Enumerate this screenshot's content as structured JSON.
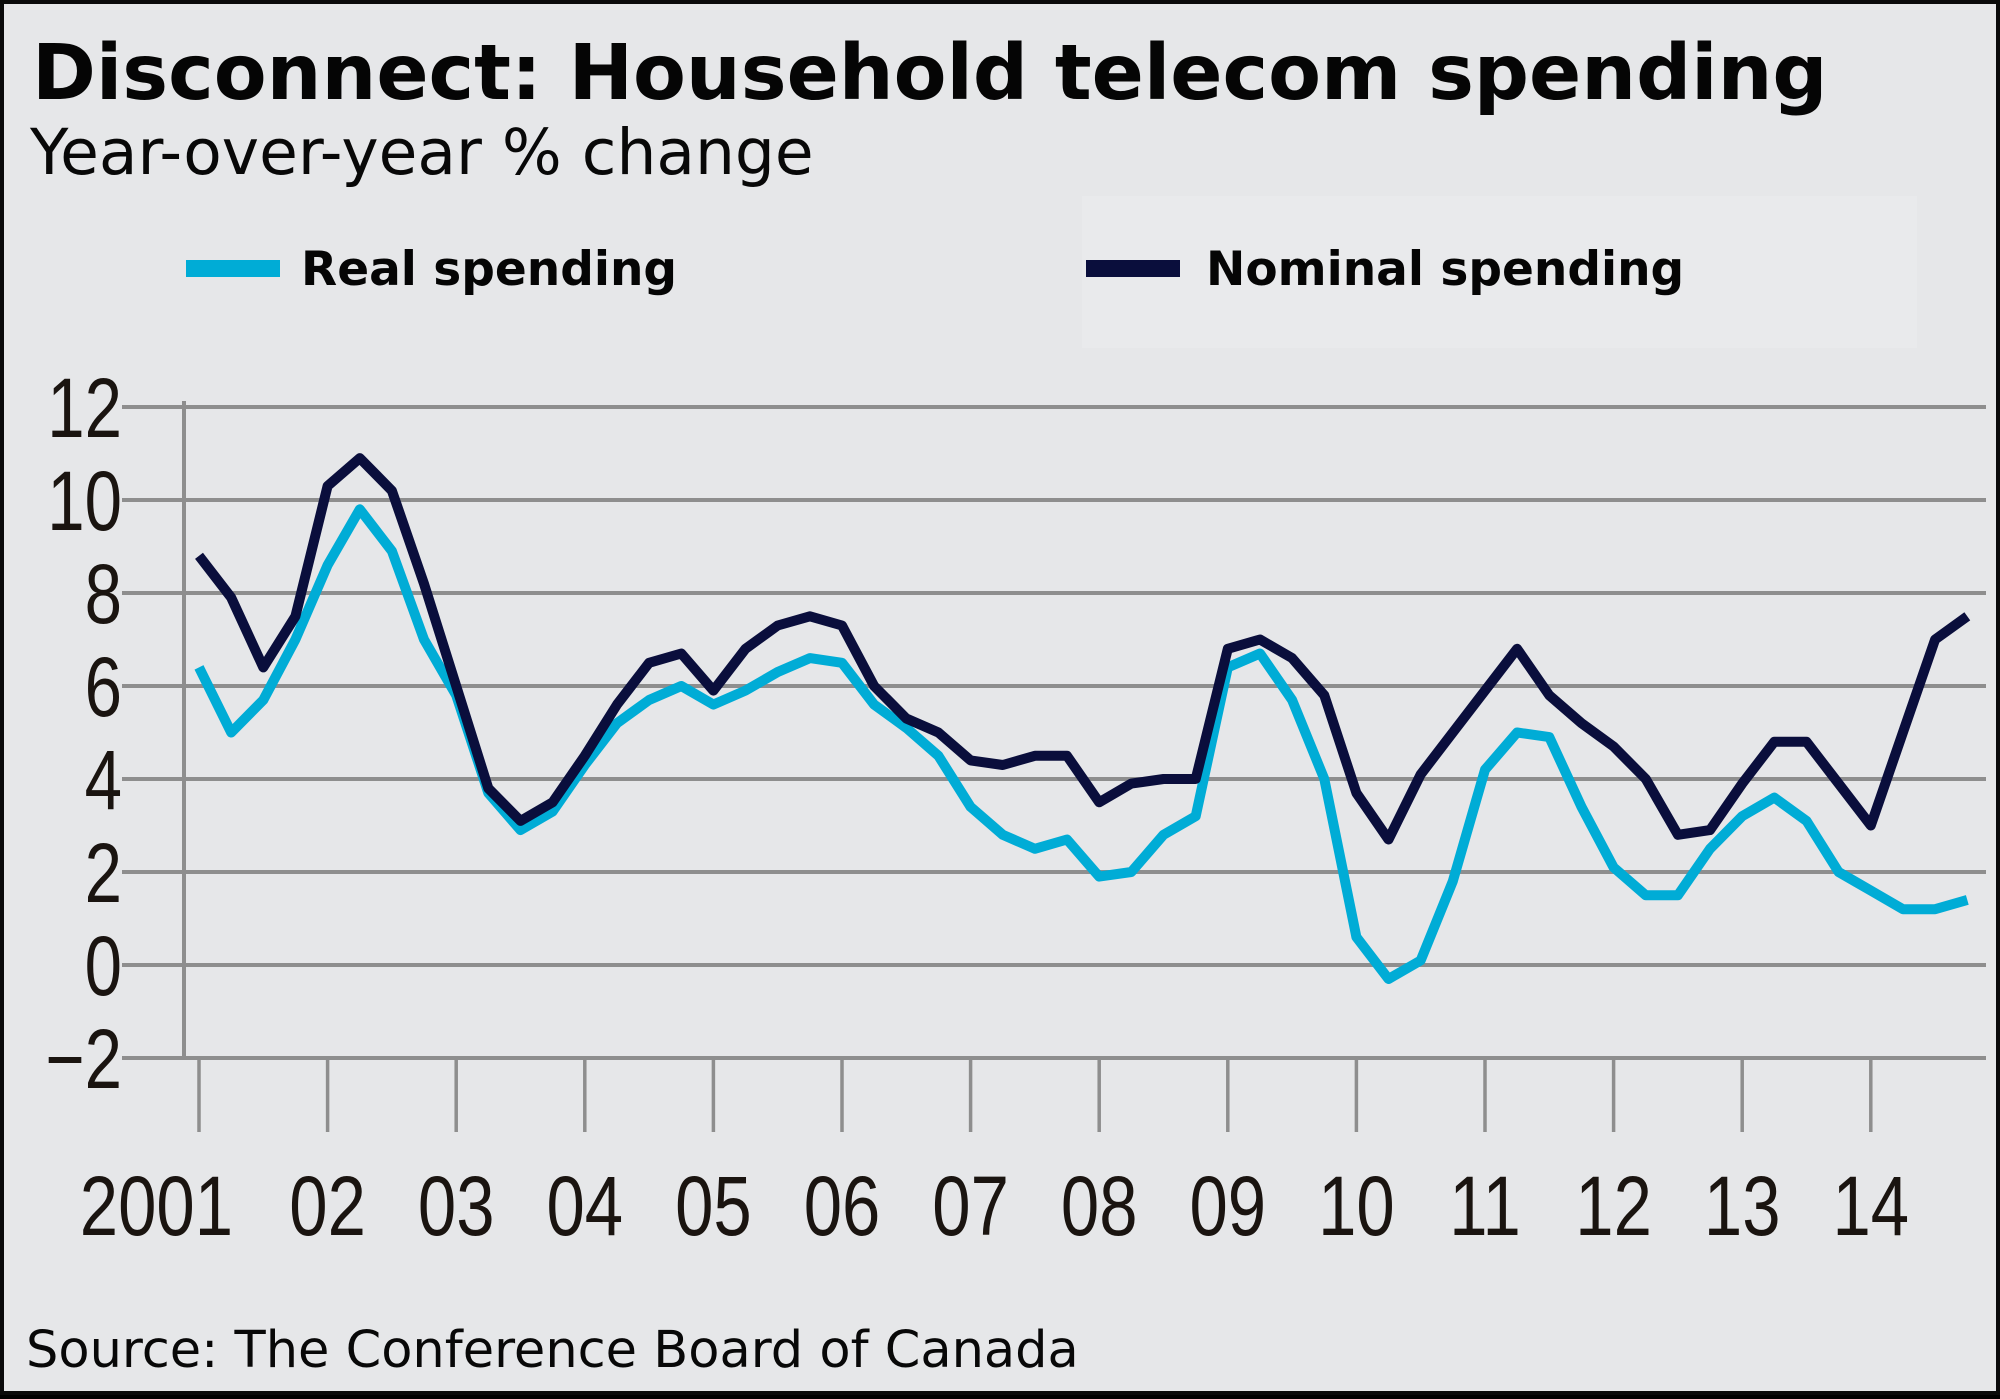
{
  "colors": {
    "background": "#e6e7e9",
    "real": "#00acd6",
    "nominal": "#0a0e3c",
    "grid": "#8e8e8e"
  },
  "chart_data": {
    "type": "line",
    "title": "Disconnect: Household telecom spending",
    "subtitle": "Year-over-year % change",
    "source": "Source: The Conference Board of Canada",
    "xlabel": "",
    "ylabel": "",
    "ylim": [
      -2,
      12
    ],
    "yticks": [
      12,
      10,
      8,
      6,
      4,
      2,
      0,
      -2
    ],
    "ytick_labels": [
      "12",
      "10",
      "8",
      "6",
      "4",
      "2",
      "0",
      "−2"
    ],
    "xlim": [
      2001,
      2014.75
    ],
    "xticks": [
      2001,
      2002,
      2003,
      2004,
      2005,
      2006,
      2007,
      2008,
      2009,
      2010,
      2011,
      2012,
      2013,
      2014
    ],
    "xtick_labels": [
      "2001",
      "02",
      "03",
      "04",
      "05",
      "06",
      "07",
      "08",
      "09",
      "10",
      "11",
      "12",
      "13",
      "14"
    ],
    "grid": true,
    "legend_position": "top",
    "x_start": 2001,
    "x_step": 0.25,
    "series": [
      {
        "name": "Real spending",
        "color": "#00acd6",
        "values": [
          6.4,
          5.0,
          5.7,
          7.0,
          8.6,
          9.8,
          8.9,
          7.0,
          5.8,
          3.7,
          2.9,
          3.3,
          4.3,
          5.2,
          5.7,
          6.0,
          5.6,
          5.9,
          6.3,
          6.6,
          6.5,
          5.6,
          5.1,
          4.5,
          3.4,
          2.8,
          2.5,
          2.7,
          1.9,
          2.0,
          2.8,
          3.2,
          6.4,
          6.7,
          5.7,
          4.0,
          0.6,
          -0.3,
          0.1,
          1.8,
          4.2,
          5.0,
          4.9,
          3.4,
          2.1,
          1.5,
          1.5,
          2.5,
          3.2,
          3.6,
          3.1,
          2.0,
          1.6,
          1.2,
          1.2,
          1.4
        ]
      },
      {
        "name": "Nominal spending",
        "color": "#0a0e3c",
        "values": [
          8.8,
          7.9,
          6.4,
          7.5,
          10.3,
          10.9,
          10.2,
          8.2,
          6.0,
          3.8,
          3.1,
          3.5,
          4.5,
          5.6,
          6.5,
          6.7,
          5.9,
          6.8,
          7.3,
          7.5,
          7.3,
          6.0,
          5.3,
          5.0,
          4.4,
          4.3,
          4.5,
          4.5,
          3.5,
          3.9,
          4.0,
          4.0,
          6.8,
          7.0,
          6.6,
          5.8,
          3.7,
          2.7,
          4.1,
          5.0,
          5.9,
          6.8,
          5.8,
          5.2,
          4.7,
          4.0,
          2.8,
          2.9,
          3.9,
          4.8,
          4.8,
          3.9,
          3.0,
          5.0,
          7.0,
          7.5
        ]
      }
    ]
  }
}
